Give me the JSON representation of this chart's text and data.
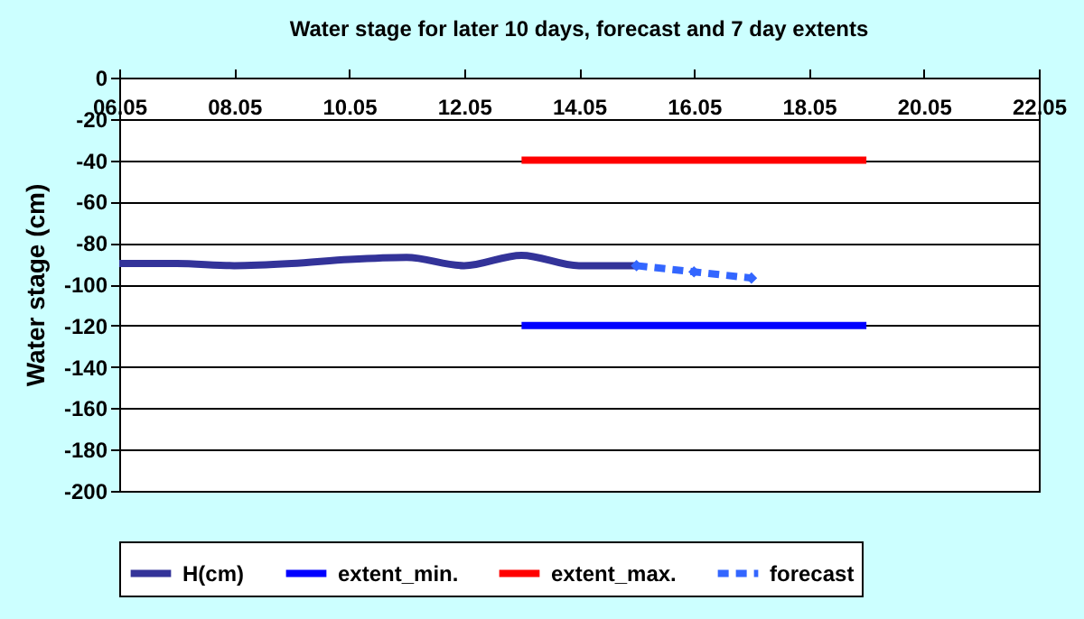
{
  "chart_data": {
    "type": "line",
    "title": "Water stage for later 10 days, forecast and 7 day extents",
    "ylabel": "Water stage (cm)",
    "xlim": [
      "--05-06",
      "--05-22"
    ],
    "xticks": [
      {
        "value": "--05-06",
        "label": "06.05"
      },
      {
        "value": "--05-08",
        "label": "08.05"
      },
      {
        "value": "--05-10",
        "label": "10.05"
      },
      {
        "value": "--05-12",
        "label": "12.05"
      },
      {
        "value": "--05-14",
        "label": "14.05"
      },
      {
        "value": "--05-16",
        "label": "16.05"
      },
      {
        "value": "--05-18",
        "label": "18.05"
      },
      {
        "value": "--05-20",
        "label": "20.05"
      },
      {
        "value": "--05-22",
        "label": "22.05"
      }
    ],
    "ylim": [
      -200,
      0
    ],
    "yticks": [
      -200,
      -180,
      -160,
      -140,
      -120,
      -100,
      -80,
      -60,
      -40,
      -20,
      0
    ],
    "grid": "y",
    "legend": "bottom",
    "series": [
      {
        "name": "H(cm)",
        "color": "#333399",
        "line_style": "solid",
        "marker": "none",
        "x": [
          "--05-06",
          "--05-07",
          "--05-08",
          "--05-09",
          "--05-10",
          "--05-11",
          "--05-12",
          "--05-13",
          "--05-14",
          "--05-15"
        ],
        "values": [
          -90,
          -90,
          -91,
          -90,
          -88,
          -87,
          -91,
          -86,
          -91,
          -91
        ]
      },
      {
        "name": "extent_min.",
        "color": "#0000ff",
        "line_style": "solid",
        "marker": "none",
        "x": [
          "--05-13",
          "--05-19"
        ],
        "values": [
          -120,
          -120
        ]
      },
      {
        "name": "extent_max.",
        "color": "#ff0000",
        "line_style": "solid",
        "marker": "none",
        "x": [
          "--05-13",
          "--05-19"
        ],
        "values": [
          -40,
          -40
        ]
      },
      {
        "name": "forecast",
        "color": "#3366ff",
        "line_style": "dashed",
        "marker": "diamond",
        "x": [
          "--05-15",
          "--05-16",
          "--05-17"
        ],
        "values": [
          -91,
          -94,
          -97
        ]
      }
    ]
  }
}
